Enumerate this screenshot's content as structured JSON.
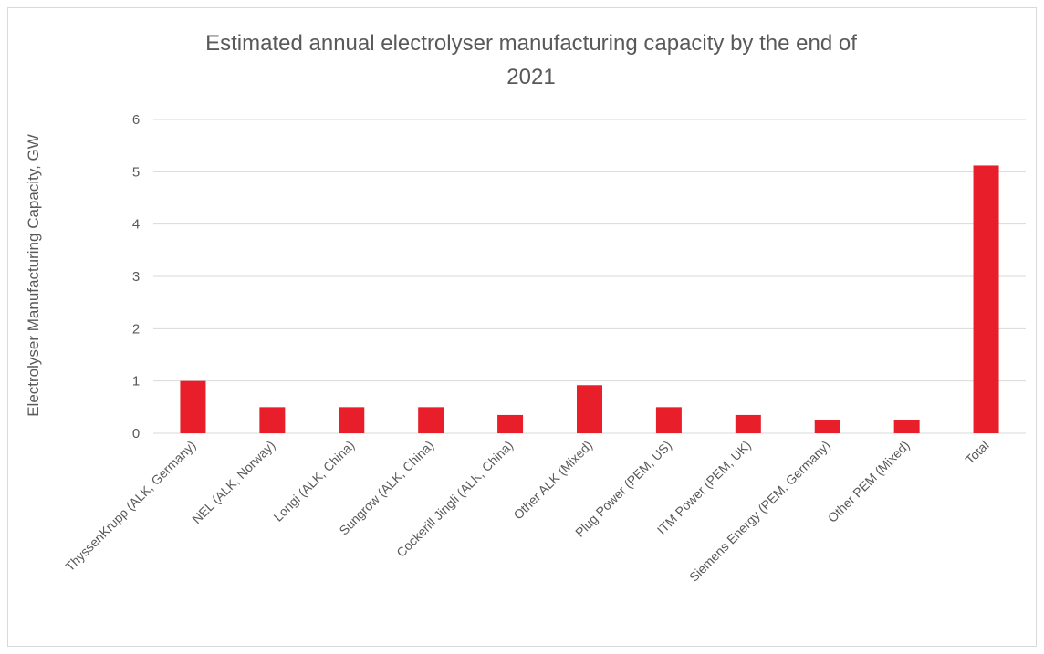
{
  "chart_data": {
    "type": "bar",
    "title": "Estimated annual electrolyser manufacturing capacity by the end of 2021",
    "title_lines": [
      "Estimated annual electrolyser manufacturing capacity by the end of",
      "2021"
    ],
    "xlabel": "",
    "ylabel": "Electrolyser Manufacturing Capacity, GW",
    "ylim": [
      0,
      6
    ],
    "yticks": [
      0,
      1,
      2,
      3,
      4,
      5,
      6
    ],
    "grid": true,
    "bar_color": "#e81f2a",
    "categories": [
      "ThyssenKrupp (ALK, Germany)",
      "NEL (ALK, Norway)",
      "Longi (ALK, China)",
      "Sungrow (ALK, China)",
      "Cockerill Jingli (ALK, China)",
      "Other ALK (Mixed)",
      "Plug Power (PEM, US)",
      "ITM Power (PEM, UK)",
      "Siemens Energy (PEM, Germany)",
      "Other PEM (Mixed)",
      "Total"
    ],
    "values": [
      1.0,
      0.5,
      0.5,
      0.5,
      0.35,
      0.92,
      0.5,
      0.35,
      0.25,
      0.25,
      5.12
    ]
  }
}
